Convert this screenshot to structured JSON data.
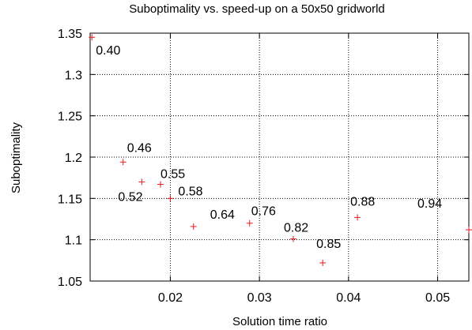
{
  "chart_data": {
    "type": "scatter",
    "title": "Suboptimality vs. speed-up on a 50x50 gridworld",
    "xlabel": "Solution time ratio",
    "ylabel": "Suboptimality",
    "xlim": [
      0.011,
      0.0535
    ],
    "ylim": [
      1.05,
      1.35
    ],
    "x_ticks": [
      0.02,
      0.03,
      0.04,
      0.05
    ],
    "x_tick_labels": [
      "0.02",
      "0.03",
      "0.04",
      "0.05"
    ],
    "y_ticks": [
      1.05,
      1.1,
      1.15,
      1.2,
      1.25,
      1.3,
      1.35
    ],
    "y_tick_labels": [
      "1.05",
      "1.1",
      "1.15",
      "1.2",
      "1.25",
      "1.3",
      "1.35"
    ],
    "grid": true,
    "marker_color": "#e41a1c",
    "points": [
      {
        "x": 0.0112,
        "y": 1.345,
        "label": "0.40"
      },
      {
        "x": 0.0147,
        "y": 1.194,
        "label": "0.46"
      },
      {
        "x": 0.0168,
        "y": 1.17,
        "label": "0.52"
      },
      {
        "x": 0.0189,
        "y": 1.167,
        "label": "0.55"
      },
      {
        "x": 0.02,
        "y": 1.15,
        "label": "0.58"
      },
      {
        "x": 0.0226,
        "y": 1.116,
        "label": "0.64"
      },
      {
        "x": 0.0289,
        "y": 1.12,
        "label": "0.76"
      },
      {
        "x": 0.0338,
        "y": 1.101,
        "label": "0.82"
      },
      {
        "x": 0.0371,
        "y": 1.072,
        "label": "0.85"
      },
      {
        "x": 0.041,
        "y": 1.127,
        "label": "0.88"
      },
      {
        "x": 0.0535,
        "y": 1.112,
        "label": "0.94"
      }
    ]
  }
}
